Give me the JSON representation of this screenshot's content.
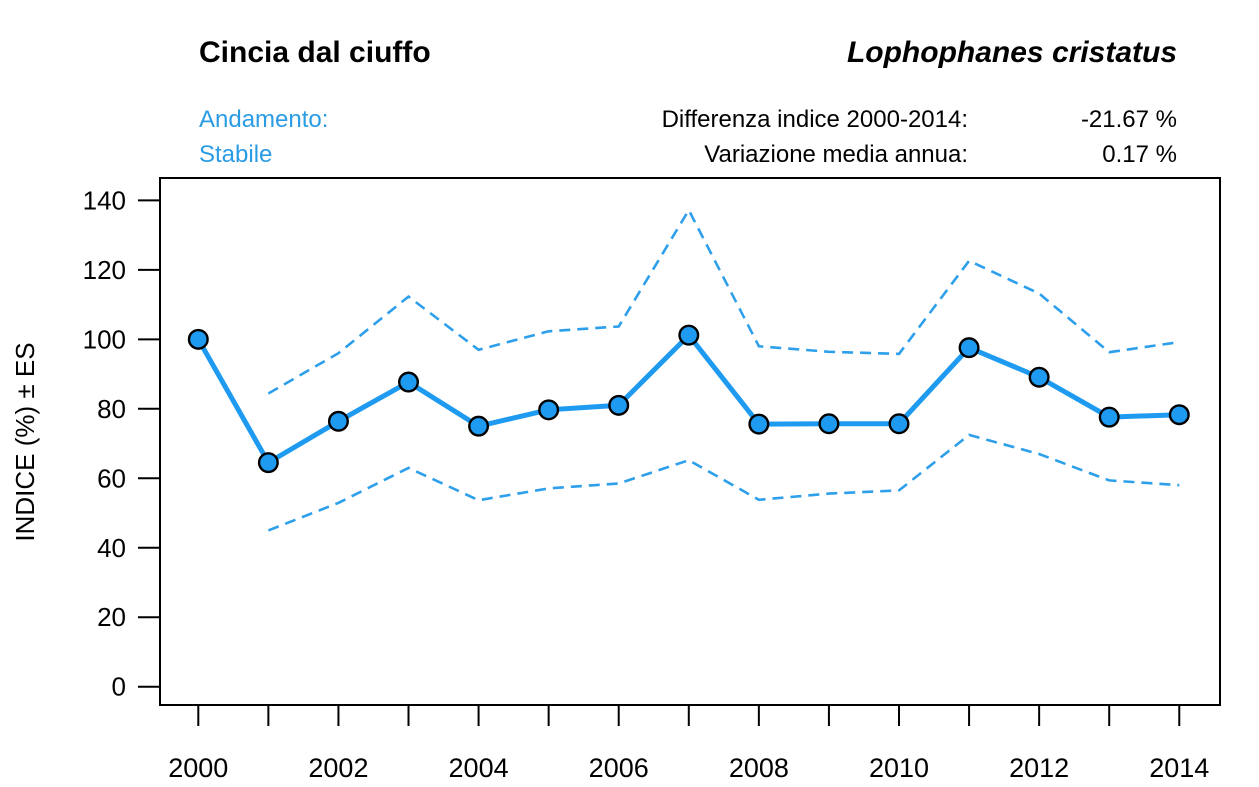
{
  "header": {
    "title_common": "Cincia dal ciuffo",
    "title_scientific": "Lophophanes cristatus",
    "trend": {
      "label": "Andamento:",
      "value": "Stabile"
    },
    "stats": [
      {
        "label": "Differenza indice 2000-2014:",
        "value": "-21.67 %"
      },
      {
        "label": "Variazione media annua:",
        "value": "0.17 %"
      }
    ]
  },
  "colors": {
    "line": "#1E9BF0",
    "marker_fill": "#1E9BF0",
    "marker_stroke": "#000000",
    "dashed": "#2E9FEA",
    "accent_text": "#2B9CE4",
    "axis": "#000000"
  },
  "chart_data": {
    "type": "line",
    "title": "",
    "xlabel": "",
    "ylabel": "INDICE (%) ± ES",
    "x": [
      2000,
      2001,
      2002,
      2003,
      2004,
      2005,
      2006,
      2007,
      2008,
      2009,
      2010,
      2011,
      2012,
      2013,
      2014
    ],
    "series": [
      {
        "name": "indice",
        "style": "solid",
        "markers": true,
        "values": [
          100,
          64.5,
          76.4,
          87.7,
          75.0,
          79.7,
          81.0,
          101.2,
          75.6,
          75.7,
          75.7,
          97.6,
          89.1,
          77.6,
          78.3
        ]
      },
      {
        "name": "limite superiore ES",
        "style": "dashed",
        "markers": false,
        "values": [
          null,
          84.4,
          96.0,
          112.3,
          97.0,
          102.3,
          103.7,
          137.2,
          98.0,
          96.4,
          95.8,
          122.6,
          113.2,
          96.3,
          99.2
        ]
      },
      {
        "name": "limite inferiore ES",
        "style": "dashed",
        "markers": false,
        "values": [
          null,
          45.0,
          52.9,
          63.0,
          53.7,
          57.1,
          58.5,
          65.2,
          53.8,
          55.6,
          56.5,
          72.5,
          67.0,
          59.4,
          58.0
        ]
      }
    ],
    "ylim": [
      0,
      145
    ],
    "yticks": [
      0,
      20,
      40,
      60,
      80,
      100,
      120,
      140
    ],
    "xticks_labeled": [
      2000,
      2002,
      2004,
      2006,
      2008,
      2010,
      2012,
      2014
    ],
    "xticks_minor_every": 1,
    "grid": false,
    "legend": "none"
  }
}
